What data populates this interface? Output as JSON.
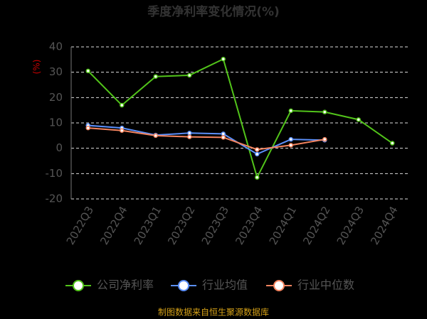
{
  "chart_data": {
    "type": "line",
    "title": "季度净利率变化情况(%)",
    "y_label": "(%)",
    "categories": [
      "2022Q3",
      "2022Q4",
      "2023Q1",
      "2023Q2",
      "2023Q3",
      "2023Q4",
      "2024Q1",
      "2024Q2",
      "2024Q3",
      "2024Q4"
    ],
    "series": [
      {
        "name": "公司净利率",
        "color": "#52c41a",
        "values": [
          30.5,
          17,
          28.3,
          28.8,
          35.2,
          -11.5,
          14.8,
          14.3,
          11.3,
          2.0
        ]
      },
      {
        "name": "行业均值",
        "color": "#5b8ff9",
        "values": [
          9,
          8,
          5.2,
          6,
          5.7,
          -2.3,
          3.5,
          3.2,
          null,
          null
        ]
      },
      {
        "name": "行业中位数",
        "color": "#f4845f",
        "values": [
          8,
          7,
          5,
          4.5,
          4.3,
          -0.5,
          1.2,
          3.5,
          null,
          null
        ]
      }
    ],
    "ylim": [
      -20,
      40
    ],
    "yticks": [
      -20,
      -10,
      0,
      10,
      20,
      30,
      40
    ],
    "grid": true,
    "source": "制图数据来自恒生聚源数据库"
  }
}
